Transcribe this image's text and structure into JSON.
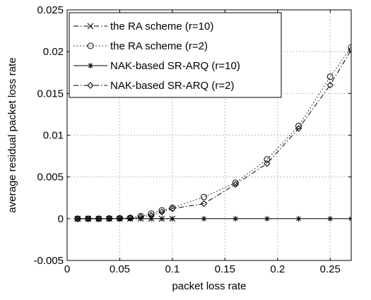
{
  "chart_data": {
    "type": "line",
    "xlabel": "packet loss rate",
    "ylabel": "average residual packet loss rate",
    "xlim": [
      0,
      0.27
    ],
    "ylim": [
      -0.005,
      0.025
    ],
    "xticks": [
      0,
      0.05,
      0.1,
      0.15,
      0.2,
      0.25
    ],
    "xtick_labels": [
      "0",
      "0.05",
      "0.1",
      "0.15",
      "0.2",
      "0.25"
    ],
    "yticks": [
      -0.005,
      0,
      0.005,
      0.01,
      0.015,
      0.02,
      0.025
    ],
    "ytick_labels": [
      "-0.005",
      "0",
      "0.005",
      "0.01",
      "0.015",
      "0.02",
      "0.025"
    ],
    "grid": true,
    "legend_position": "top-left",
    "series": [
      {
        "name": "the RA scheme (r=10)",
        "line_style": "dashdot",
        "marker": "x",
        "x": [
          0.01,
          0.02,
          0.03,
          0.04,
          0.05,
          0.06,
          0.07,
          0.08,
          0.09,
          0.1
        ],
        "y": [
          0,
          0,
          0,
          0,
          0,
          0,
          0,
          0,
          0,
          0
        ]
      },
      {
        "name": "the RA scheme (r=2)",
        "line_style": "dotted",
        "marker": "o",
        "x": [
          0.01,
          0.02,
          0.03,
          0.04,
          0.05,
          0.06,
          0.07,
          0.08,
          0.09,
          0.1,
          0.13,
          0.16,
          0.19,
          0.22,
          0.25,
          0.27
        ],
        "y": [
          0,
          0,
          0,
          3e-05,
          5e-05,
          0.0001,
          0.0003,
          0.0006,
          0.001,
          0.0013,
          0.0026,
          0.0043,
          0.0071,
          0.0111,
          0.017,
          0.0205
        ]
      },
      {
        "name": "NAK-based SR-ARQ (r=10)",
        "line_style": "solid",
        "marker": "*",
        "x": [
          0.01,
          0.02,
          0.03,
          0.04,
          0.05,
          0.06,
          0.07,
          0.08,
          0.09,
          0.1,
          0.13,
          0.16,
          0.19,
          0.22,
          0.25,
          0.27
        ],
        "y": [
          0,
          0,
          0,
          0,
          0,
          0,
          0,
          0,
          0,
          0,
          0,
          0,
          0,
          0,
          0,
          0
        ]
      },
      {
        "name": "NAK-based SR-ARQ (r=2)",
        "line_style": "dashdot",
        "marker": "diamond",
        "x": [
          0.01,
          0.02,
          0.03,
          0.04,
          0.05,
          0.06,
          0.07,
          0.08,
          0.09,
          0.1,
          0.13,
          0.16,
          0.19,
          0.22,
          0.25,
          0.27
        ],
        "y": [
          0,
          0,
          0,
          2e-05,
          4e-05,
          8e-05,
          0.0002,
          0.0004,
          0.0008,
          0.0012,
          0.0018,
          0.0041,
          0.0066,
          0.0108,
          0.016,
          0.0202
        ]
      }
    ]
  }
}
